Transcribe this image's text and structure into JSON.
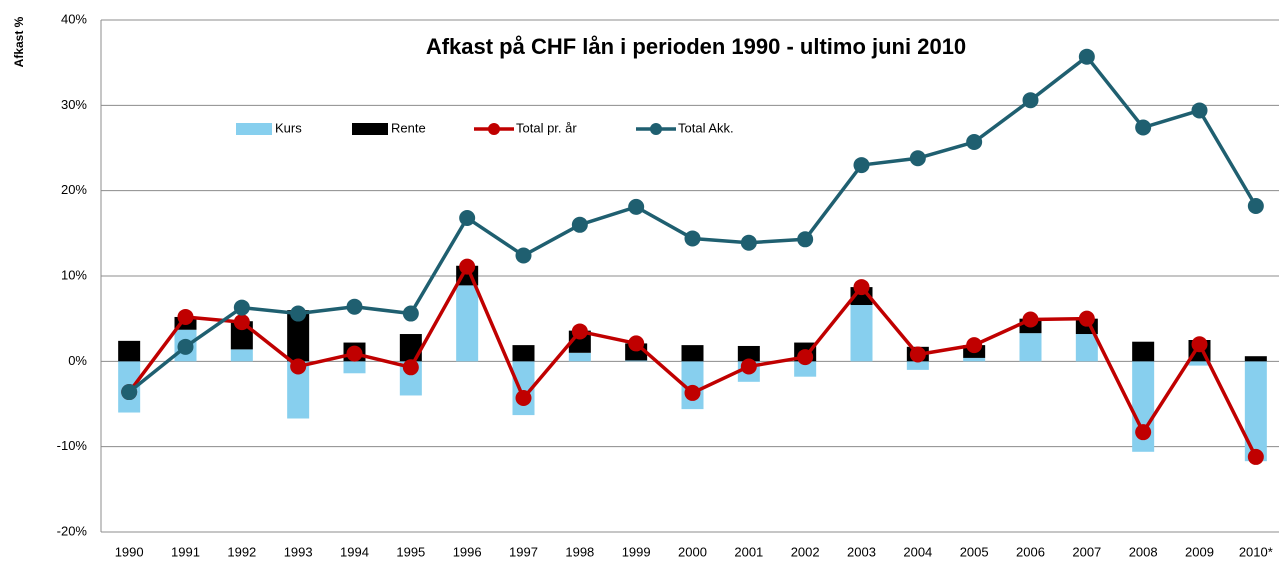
{
  "chart_data": {
    "type": "bar",
    "title": "Afkast på CHF lån i perioden 1990 - ultimo juni 2010",
    "y_label": "Afkast %",
    "categories": [
      "1990",
      "1991",
      "1992",
      "1993",
      "1994",
      "1995",
      "1996",
      "1997",
      "1998",
      "1999",
      "2000",
      "2001",
      "2002",
      "2003",
      "2004",
      "2005",
      "2006",
      "2007",
      "2008",
      "2009",
      "2010*"
    ],
    "series": [
      {
        "name": "Kurs",
        "type": "bar",
        "color": "#87cfee",
        "values": [
          -6.0,
          3.7,
          1.4,
          -6.7,
          -1.4,
          -4.0,
          8.9,
          -6.3,
          1.0,
          0.1,
          -5.6,
          -2.4,
          -1.8,
          6.6,
          -1.0,
          0.4,
          3.3,
          3.2,
          -10.6,
          -0.5,
          -11.7
        ]
      },
      {
        "name": "Rente",
        "type": "bar",
        "color": "#000000",
        "values": [
          2.4,
          1.5,
          3.3,
          6.0,
          2.2,
          3.2,
          2.3,
          1.9,
          2.6,
          2.0,
          1.9,
          1.8,
          2.2,
          2.1,
          1.7,
          1.5,
          1.7,
          1.8,
          2.3,
          2.5,
          0.6
        ]
      },
      {
        "name": "Total pr. år",
        "type": "line",
        "color": "#c00000",
        "values": [
          -3.6,
          5.2,
          4.6,
          -0.6,
          0.9,
          -0.7,
          11.1,
          -4.3,
          3.5,
          2.1,
          -3.7,
          -0.6,
          0.5,
          8.7,
          0.8,
          1.9,
          4.9,
          5.0,
          -8.3,
          2.0,
          -11.2
        ]
      },
      {
        "name": "Total Akk.",
        "type": "line",
        "color": "#1f5f70",
        "values": [
          -3.6,
          1.7,
          6.3,
          5.6,
          6.4,
          5.6,
          16.8,
          12.4,
          16.0,
          18.1,
          14.4,
          13.9,
          14.3,
          23.0,
          23.8,
          25.7,
          30.6,
          35.7,
          27.4,
          29.4,
          18.2
        ]
      }
    ],
    "ylim": [
      -20,
      40
    ],
    "yticks": [
      {
        "value": -20,
        "label": "-20%"
      },
      {
        "value": -10,
        "label": "-10%"
      },
      {
        "value": 0,
        "label": "0%"
      },
      {
        "value": 10,
        "label": "10%"
      },
      {
        "value": 20,
        "label": "20%"
      },
      {
        "value": 30,
        "label": "30%"
      },
      {
        "value": 40,
        "label": "40%"
      }
    ],
    "grid": true
  }
}
